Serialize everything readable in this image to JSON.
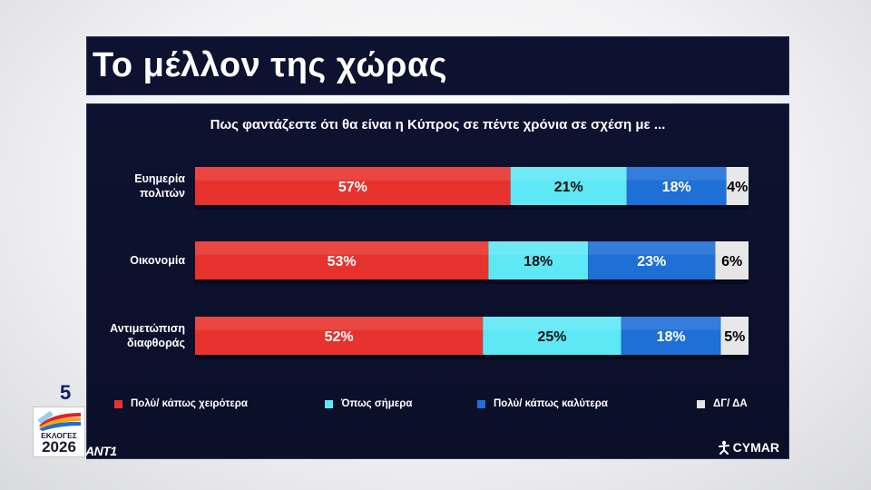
{
  "header": {
    "title": "Το μέλλον της χώρας"
  },
  "question": "Πως φαντάζεστε ότι θα είναι η Κύπρος σε πέντε χρόνια σε σχέση με ...",
  "chart_data": {
    "type": "bar",
    "orientation": "horizontal-stacked-100",
    "categories": [
      [
        "Ευημερία",
        "πολιτών"
      ],
      [
        "Οικονομία"
      ],
      [
        "Αντιμετώπιση",
        "διαφθοράς"
      ]
    ],
    "series": [
      {
        "name": "Πολύ/ κάπως χειρότερα",
        "values": [
          57,
          53,
          52
        ],
        "color": "#e8322d",
        "label_color": "#ffffff"
      },
      {
        "name": "Όπως σήμερα",
        "values": [
          21,
          18,
          25
        ],
        "color": "#5ee8f5",
        "label_color": "#111111"
      },
      {
        "name": "Πολύ/ κάπως καλύτερα",
        "values": [
          18,
          23,
          18
        ],
        "color": "#1e6fd6",
        "label_color": "#ffffff"
      },
      {
        "name": "ΔΓ/ ΔΑ",
        "values": [
          4,
          6,
          5
        ],
        "color": "#e6e6e6",
        "label_color": "#000000"
      }
    ],
    "value_suffix": "%",
    "legend_position": "bottom"
  },
  "branding": {
    "channel": "ANT1",
    "pollster": "CYMAR",
    "badge_number": "5",
    "badge_word": "ΕΚΛΟΓΕΣ",
    "badge_year": "2026"
  }
}
